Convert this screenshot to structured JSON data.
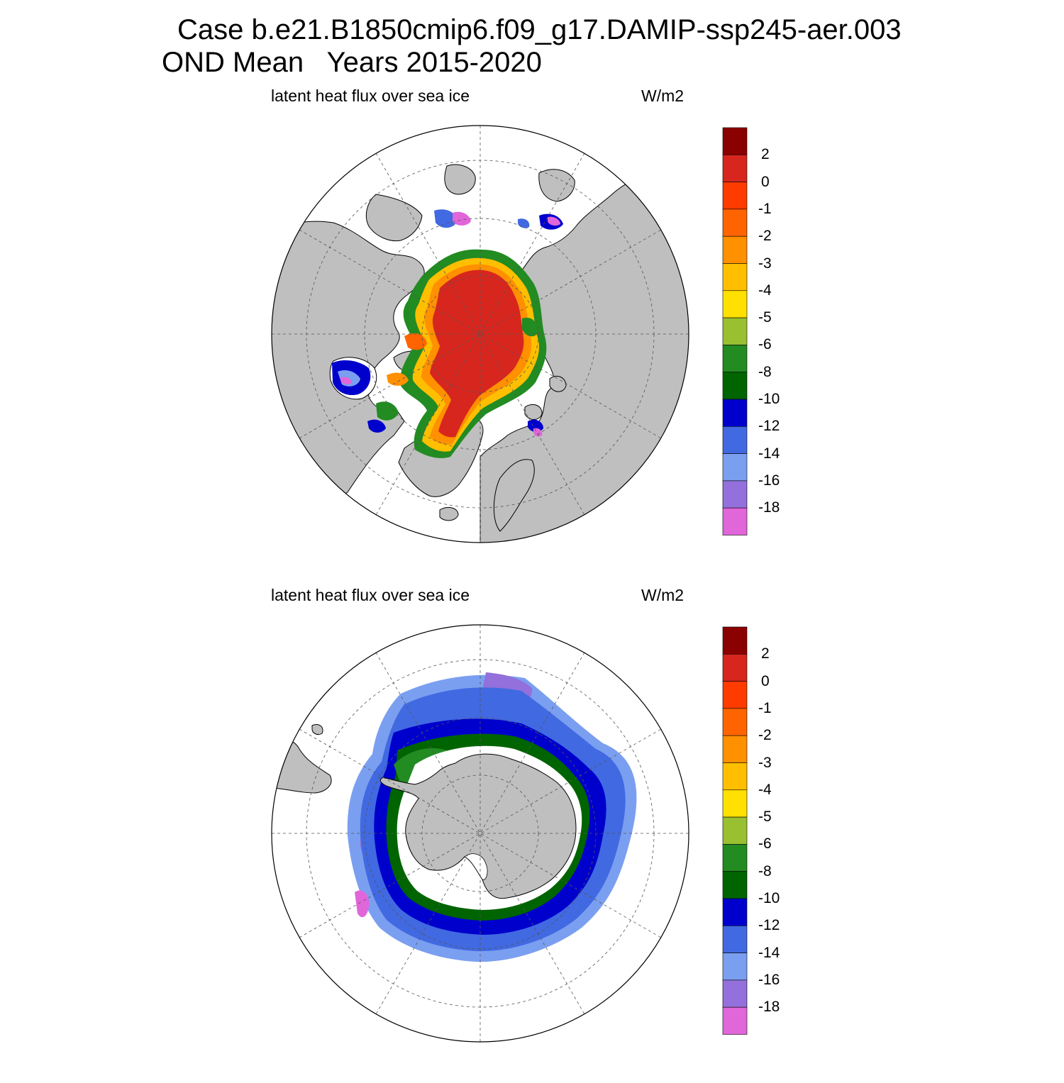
{
  "title": {
    "line1": "Case b.e21.B1850cmip6.f09_g17.DAMIP-ssp245-aer.003",
    "line2": "OND Mean   Years 2015-2020"
  },
  "panels": [
    {
      "id": "north",
      "variable": "latent heat flux over sea ice",
      "units": "W/m2",
      "hemisphere": "Arctic"
    },
    {
      "id": "south",
      "variable": "latent heat flux over sea ice",
      "units": "W/m2",
      "hemisphere": "Antarctic"
    }
  ],
  "colorbar": {
    "labels": [
      "2",
      "0",
      "-1",
      "-2",
      "-3",
      "-4",
      "-5",
      "-6",
      "-8",
      "-10",
      "-12",
      "-14",
      "-16",
      "-18"
    ],
    "colors": [
      "#8b0000",
      "#d7261e",
      "#ff3b00",
      "#ff6400",
      "#ff9000",
      "#ffbf00",
      "#ffe000",
      "#99c030",
      "#228b22",
      "#006400",
      "#0000cd",
      "#4169e1",
      "#7b9ff0",
      "#9370db",
      "#e066da"
    ]
  },
  "colors": {
    "land": "#bfbfbf",
    "background": "#ffffff"
  }
}
